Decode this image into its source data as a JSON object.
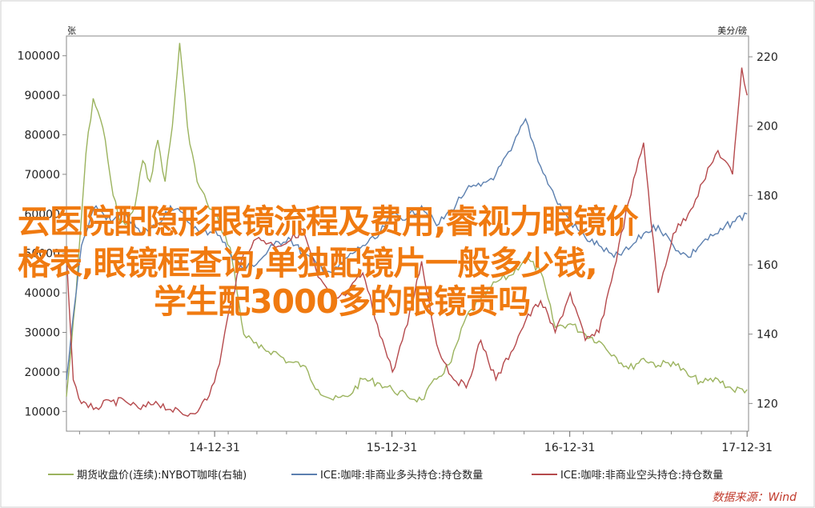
{
  "chart_data": {
    "type": "line",
    "title": "",
    "left_axis": {
      "unit": "张",
      "range": [
        5000,
        105000
      ],
      "ticks": [
        10000,
        20000,
        30000,
        40000,
        50000,
        60000,
        70000,
        80000,
        90000,
        100000
      ]
    },
    "right_axis": {
      "unit": "美分/磅",
      "range": [
        112,
        226
      ],
      "ticks": [
        120,
        140,
        160,
        180,
        200,
        220
      ]
    },
    "x_axis": {
      "ticks": [
        "14-12-31",
        "15-12-31",
        "16-12-31",
        "17-12-31"
      ],
      "range": [
        "2014-03-01",
        "2018-01-03"
      ]
    },
    "legend_position": "bottom",
    "series": [
      {
        "name": "期货收盘价(连续):NYBOT咖啡(右轴)",
        "axis": "right",
        "color": "#9bb35e",
        "x": [
          "2014-03-01",
          "2014-03-20",
          "2014-04-10",
          "2014-04-25",
          "2014-05-10",
          "2014-05-20",
          "2014-06-05",
          "2014-06-20",
          "2014-07-05",
          "2014-07-20",
          "2014-08-05",
          "2014-08-20",
          "2014-09-05",
          "2014-09-20",
          "2014-10-05",
          "2014-10-20",
          "2014-11-05",
          "2014-11-25",
          "2014-12-15",
          "2015-01-10",
          "2015-02-01",
          "2015-03-01",
          "2015-04-01",
          "2015-05-01",
          "2015-06-01",
          "2015-07-01",
          "2015-08-01",
          "2015-09-01",
          "2015-10-01",
          "2015-11-01",
          "2015-12-01",
          "2016-01-01",
          "2016-02-01",
          "2016-03-01",
          "2016-04-01",
          "2016-05-01",
          "2016-06-01",
          "2016-07-01",
          "2016-08-01",
          "2016-09-01",
          "2016-10-01",
          "2016-11-01",
          "2016-12-01",
          "2017-01-01",
          "2017-02-01",
          "2017-03-01",
          "2017-04-01",
          "2017-05-01",
          "2017-06-01",
          "2017-07-01",
          "2017-08-01",
          "2017-09-01",
          "2017-10-01",
          "2017-11-01",
          "2017-12-01",
          "2017-12-31"
        ],
        "values": [
          122,
          150,
          192,
          208,
          202,
          196,
          180,
          172,
          172,
          177,
          190,
          184,
          196,
          184,
          200,
          224,
          200,
          184,
          178,
          172,
          165,
          140,
          136,
          135,
          132,
          131,
          124,
          121,
          122,
          127,
          126,
          124,
          122,
          121,
          127,
          132,
          145,
          150,
          155,
          157,
          162,
          158,
          142,
          143,
          140,
          138,
          134,
          130,
          133,
          131,
          132,
          128,
          126,
          127,
          124,
          124
        ]
      },
      {
        "name": "ICE:咖啡:非商业多头持仓:持仓数量",
        "axis": "left",
        "color": "#5b7faf",
        "x": [
          "2014-03-01",
          "2014-04-01",
          "2014-05-01",
          "2014-06-01",
          "2014-07-01",
          "2014-08-01",
          "2014-09-01",
          "2014-10-01",
          "2014-11-01",
          "2014-12-01",
          "2015-01-01",
          "2015-02-01",
          "2015-03-01",
          "2015-04-01",
          "2015-05-01",
          "2015-06-01",
          "2015-07-01",
          "2015-08-01",
          "2015-09-01",
          "2015-10-01",
          "2015-11-01",
          "2015-12-01",
          "2016-01-01",
          "2016-02-01",
          "2016-03-01",
          "2016-04-01",
          "2016-05-01",
          "2016-06-01",
          "2016-07-01",
          "2016-08-01",
          "2016-09-01",
          "2016-10-01",
          "2016-11-01",
          "2016-12-01",
          "2017-01-01",
          "2017-02-01",
          "2017-03-01",
          "2017-04-01",
          "2017-05-01",
          "2017-06-01",
          "2017-07-01",
          "2017-08-01",
          "2017-09-01",
          "2017-10-01",
          "2017-11-01",
          "2017-12-01",
          "2017-12-31"
        ],
        "values": [
          18000,
          52000,
          62000,
          58000,
          60000,
          55000,
          57000,
          62000,
          59000,
          55000,
          56000,
          50000,
          46000,
          48000,
          52000,
          54000,
          50000,
          47000,
          45000,
          49000,
          52000,
          54000,
          60000,
          59000,
          62000,
          57000,
          61000,
          66000,
          67000,
          70000,
          76000,
          84000,
          72000,
          64000,
          58000,
          54000,
          52000,
          49000,
          51000,
          55000,
          57000,
          52000,
          49000,
          53000,
          55000,
          58000,
          60000
        ]
      },
      {
        "name": "ICE:咖啡:非商业空头持仓:持仓数量",
        "axis": "left",
        "color": "#b5494c",
        "x": [
          "2014-03-01",
          "2014-03-15",
          "2014-04-01",
          "2014-04-15",
          "2014-05-01",
          "2014-06-01",
          "2014-07-01",
          "2014-08-01",
          "2014-09-01",
          "2014-10-01",
          "2014-11-01",
          "2014-12-01",
          "2014-12-20",
          "2015-01-10",
          "2015-02-01",
          "2015-03-01",
          "2015-04-01",
          "2015-05-01",
          "2015-06-01",
          "2015-07-01",
          "2015-08-01",
          "2015-09-01",
          "2015-10-01",
          "2015-11-01",
          "2015-12-01",
          "2016-01-01",
          "2016-02-01",
          "2016-03-01",
          "2016-04-01",
          "2016-05-01",
          "2016-06-01",
          "2016-07-01",
          "2016-08-01",
          "2016-09-01",
          "2016-10-01",
          "2016-11-01",
          "2016-12-01",
          "2017-01-01",
          "2017-02-01",
          "2017-03-01",
          "2017-04-01",
          "2017-05-01",
          "2017-06-01",
          "2017-07-01",
          "2017-08-01",
          "2017-09-01",
          "2017-10-01",
          "2017-11-01",
          "2017-12-01",
          "2017-12-20",
          "2017-12-31"
        ],
        "values": [
          50000,
          18000,
          12000,
          11000,
          11000,
          12500,
          12500,
          10500,
          12500,
          10500,
          9000,
          11000,
          14000,
          22000,
          37000,
          50000,
          54000,
          52000,
          53000,
          56000,
          44000,
          38000,
          40000,
          45000,
          32000,
          20000,
          32000,
          48000,
          27000,
          19000,
          16000,
          28000,
          18000,
          25000,
          33000,
          38000,
          30000,
          40000,
          28000,
          30000,
          46000,
          63000,
          78000,
          40000,
          55000,
          60000,
          68000,
          76000,
          70000,
          97000,
          90000
        ]
      }
    ]
  },
  "overlay": {
    "lines": [
      "云医院配隐形眼镜流程及费用,睿视力眼镜价",
      "格表,眼镜框查询,单独配镜片一般多少钱,",
      "学生配3000多的眼镜贵吗"
    ]
  },
  "source": "数据来源：Wind"
}
